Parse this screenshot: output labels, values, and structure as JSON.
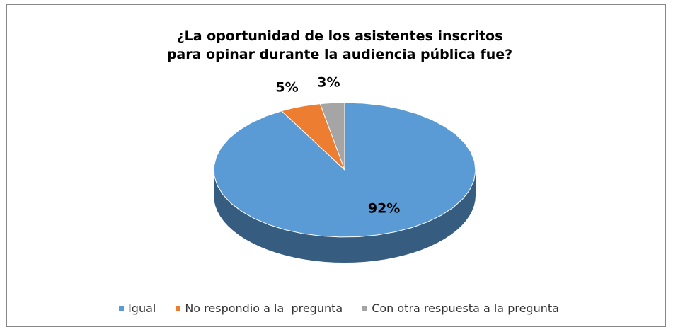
{
  "chart_data": {
    "type": "pie",
    "title": "¿La oportunidad de los asistentes inscritos para opinar durante la audiencia pública fue?",
    "categories": [
      "Igual",
      "No respondio a la  pregunta",
      "Con otra respuesta a la pregunta"
    ],
    "values": [
      92,
      5,
      3
    ],
    "value_labels": [
      "92%",
      "5%",
      "3%"
    ],
    "colors": [
      "#5b9bd5",
      "#ed7d31",
      "#a5a5a5"
    ],
    "legend": "bottom"
  }
}
